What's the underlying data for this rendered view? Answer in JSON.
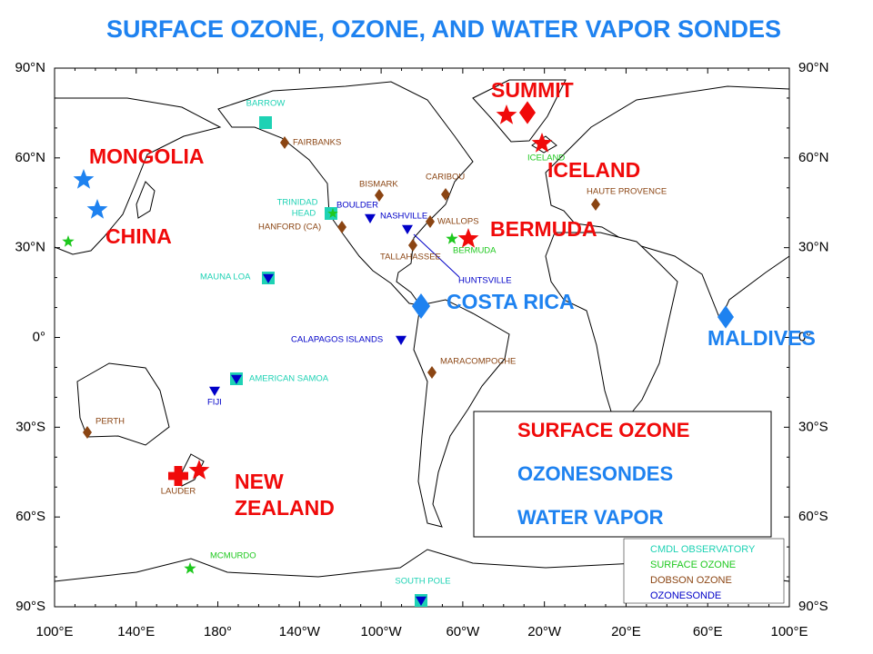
{
  "title": "SURFACE OZONE, OZONE, AND WATER VAPOR SONDES",
  "axes": {
    "lat_labels": [
      "90°N",
      "60°N",
      "30°N",
      "0°",
      "30°S",
      "60°S",
      "90°S"
    ],
    "lon_labels": [
      "100°E",
      "140°E",
      "180°",
      "140°W",
      "100°W",
      "60°W",
      "20°W",
      "20°E",
      "60°E",
      "100°E"
    ]
  },
  "regions": [
    "MONGOLIA",
    "CHINA",
    "SUMMIT",
    "ICELAND",
    "BERMUDA",
    "NEW",
    "ZEALAND",
    "COSTA RICA",
    "MALDIVES"
  ],
  "stations": [
    "BARROW",
    "FAIRBANKS",
    "BISMARK",
    "CARIBOU",
    "TRINIDAD",
    "HEAD",
    "BOULDER",
    "NASHVILLE",
    "HANFORD (CA)",
    "WALLOPS",
    "BERMUDA",
    "TALLAHASSEE",
    "HUNTSVILLE",
    "ICELAND",
    "HAUTE PROVENCE",
    "MAUNA LOA",
    "CALAPAGOS ISLANDS",
    "MARACOMPOCHE",
    "AMERICAN SAMOA",
    "FIJI",
    "PERTH",
    "LAUDER",
    "MCMURDO",
    "SOUTH POLE"
  ],
  "legend": {
    "main": [
      "SURFACE OZONE",
      "OZONESONDES",
      "WATER VAPOR"
    ],
    "key": [
      "CMDL OBSERVATORY",
      "SURFACE OZONE",
      "DOBSON OZONE",
      "OZONESONDE"
    ]
  }
}
